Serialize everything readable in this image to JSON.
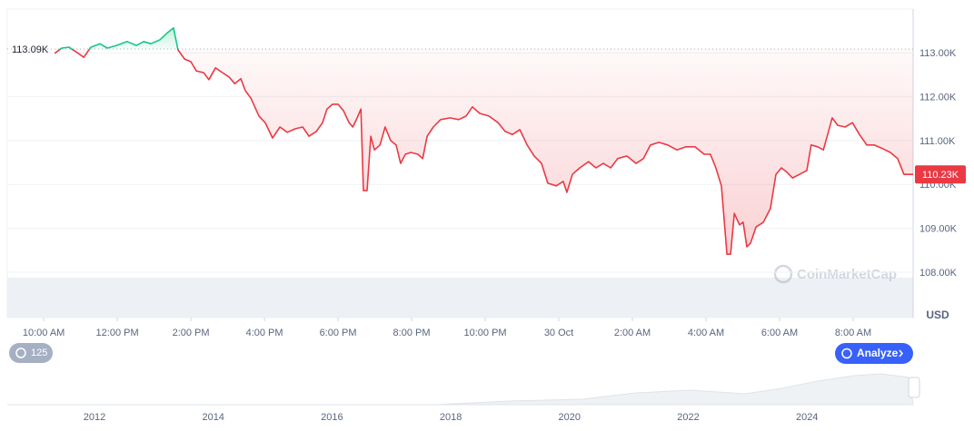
{
  "chart_data": {
    "type": "line",
    "x": [
      0.3,
      0.49,
      0.69,
      0.91,
      1.09,
      1.28,
      1.53,
      1.73,
      1.98,
      2.27,
      2.52,
      2.72,
      2.91,
      3.16,
      3.36,
      3.53,
      3.65,
      3.83,
      4.0,
      4.15,
      4.35,
      4.49,
      4.67,
      4.86,
      5.04,
      5.19,
      5.36,
      5.48,
      5.63,
      5.85,
      6.02,
      6.22,
      6.42,
      6.62,
      6.84,
      7.04,
      7.21,
      7.41,
      7.58,
      7.7,
      7.85,
      8.0,
      8.15,
      8.3,
      8.4,
      8.52,
      8.62,
      8.69,
      8.79,
      8.89,
      8.99,
      9.14,
      9.28,
      9.43,
      9.58,
      9.7,
      9.83,
      9.98,
      10.17,
      10.3,
      10.42,
      10.59,
      10.79,
      11.04,
      11.28,
      11.48,
      11.65,
      11.85,
      12.1,
      12.35,
      12.54,
      12.74,
      12.94,
      13.14,
      13.33,
      13.53,
      13.7,
      13.93,
      14.12,
      14.22,
      14.37,
      14.57,
      14.81,
      15.01,
      15.21,
      15.41,
      15.6,
      15.85,
      16.1,
      16.3,
      16.49,
      16.72,
      16.96,
      17.21,
      17.46,
      17.7,
      17.95,
      18.12,
      18.27,
      18.42,
      18.57,
      18.67,
      18.77,
      18.91,
      19.01,
      19.11,
      19.21,
      19.36,
      19.56,
      19.75,
      19.9,
      20.05,
      20.2,
      20.35,
      20.54,
      20.74,
      20.86,
      21.04,
      21.19,
      21.33,
      21.43,
      21.58,
      21.78,
      21.98,
      22.17,
      22.37,
      22.57,
      22.77,
      23.01,
      23.21,
      23.38,
      23.63
    ],
    "series": [
      {
        "name": "Price",
        "color": "#ea3943",
        "color_above": "#16c784",
        "values": [
          112990,
          113110,
          113130,
          113010,
          112900,
          113130,
          113210,
          113110,
          113170,
          113260,
          113170,
          113260,
          113210,
          113300,
          113460,
          113570,
          113070,
          112860,
          112800,
          112590,
          112550,
          112390,
          112660,
          112550,
          112450,
          112300,
          112410,
          112140,
          111970,
          111560,
          111410,
          111060,
          111310,
          111190,
          111270,
          111310,
          111100,
          111210,
          111410,
          111720,
          111830,
          111830,
          111680,
          111410,
          111310,
          111520,
          111720,
          109860,
          109860,
          111100,
          110790,
          110900,
          111310,
          111000,
          110900,
          110480,
          110690,
          110730,
          110690,
          110590,
          111100,
          111310,
          111480,
          111520,
          111480,
          111560,
          111770,
          111620,
          111560,
          111410,
          111210,
          111140,
          111250,
          110900,
          110650,
          110480,
          110030,
          109970,
          110070,
          109820,
          110230,
          110380,
          110520,
          110380,
          110480,
          110380,
          110590,
          110650,
          110480,
          110590,
          110900,
          110960,
          110900,
          110790,
          110860,
          110860,
          110690,
          110690,
          110380,
          109970,
          108410,
          108410,
          109340,
          109080,
          109140,
          108580,
          108660,
          109030,
          109140,
          109450,
          110230,
          110380,
          110280,
          110150,
          110230,
          110320,
          110900,
          110860,
          110790,
          111210,
          111520,
          111350,
          111310,
          111410,
          111140,
          110900,
          110900,
          110830,
          110730,
          110590,
          110230,
          110230
        ]
      }
    ],
    "xlim": [
      -0.99,
      23.63
    ],
    "xticks": [
      {
        "value": 0,
        "label": "10:00 AM"
      },
      {
        "value": 2,
        "label": "12:00 PM"
      },
      {
        "value": 4,
        "label": "2:00 PM"
      },
      {
        "value": 6,
        "label": "4:00 PM"
      },
      {
        "value": 8,
        "label": "6:00 PM"
      },
      {
        "value": 10,
        "label": "8:00 PM"
      },
      {
        "value": 12,
        "label": "10:00 PM"
      },
      {
        "value": 14,
        "label": "30 Oct"
      },
      {
        "value": 16,
        "label": "2:00 AM"
      },
      {
        "value": 18,
        "label": "4:00 AM"
      },
      {
        "value": 20,
        "label": "6:00 AM"
      },
      {
        "value": 22,
        "label": "8:00 AM"
      }
    ],
    "ylim": [
      108000,
      114000
    ],
    "yticks": [
      {
        "value": 108000,
        "label": "108.00K"
      },
      {
        "value": 109000,
        "label": "109.00K"
      },
      {
        "value": 110000,
        "label": "110.00K"
      },
      {
        "value": 111000,
        "label": "111.00K"
      },
      {
        "value": 112000,
        "label": "112.00K"
      },
      {
        "value": 113000,
        "label": "113.00K"
      }
    ],
    "baseline": {
      "value": 113090,
      "label": "113.09K"
    },
    "last_price": {
      "value": 110230,
      "label": "110.23K"
    },
    "y_unit": "USD",
    "grid": true
  },
  "ui": {
    "history_count": 125,
    "analyze_button": "Analyze",
    "watermark": "CoinMarketCap",
    "navigator_labels": [
      "2012",
      "2014",
      "2016",
      "2018",
      "2020",
      "2022",
      "2024"
    ]
  }
}
